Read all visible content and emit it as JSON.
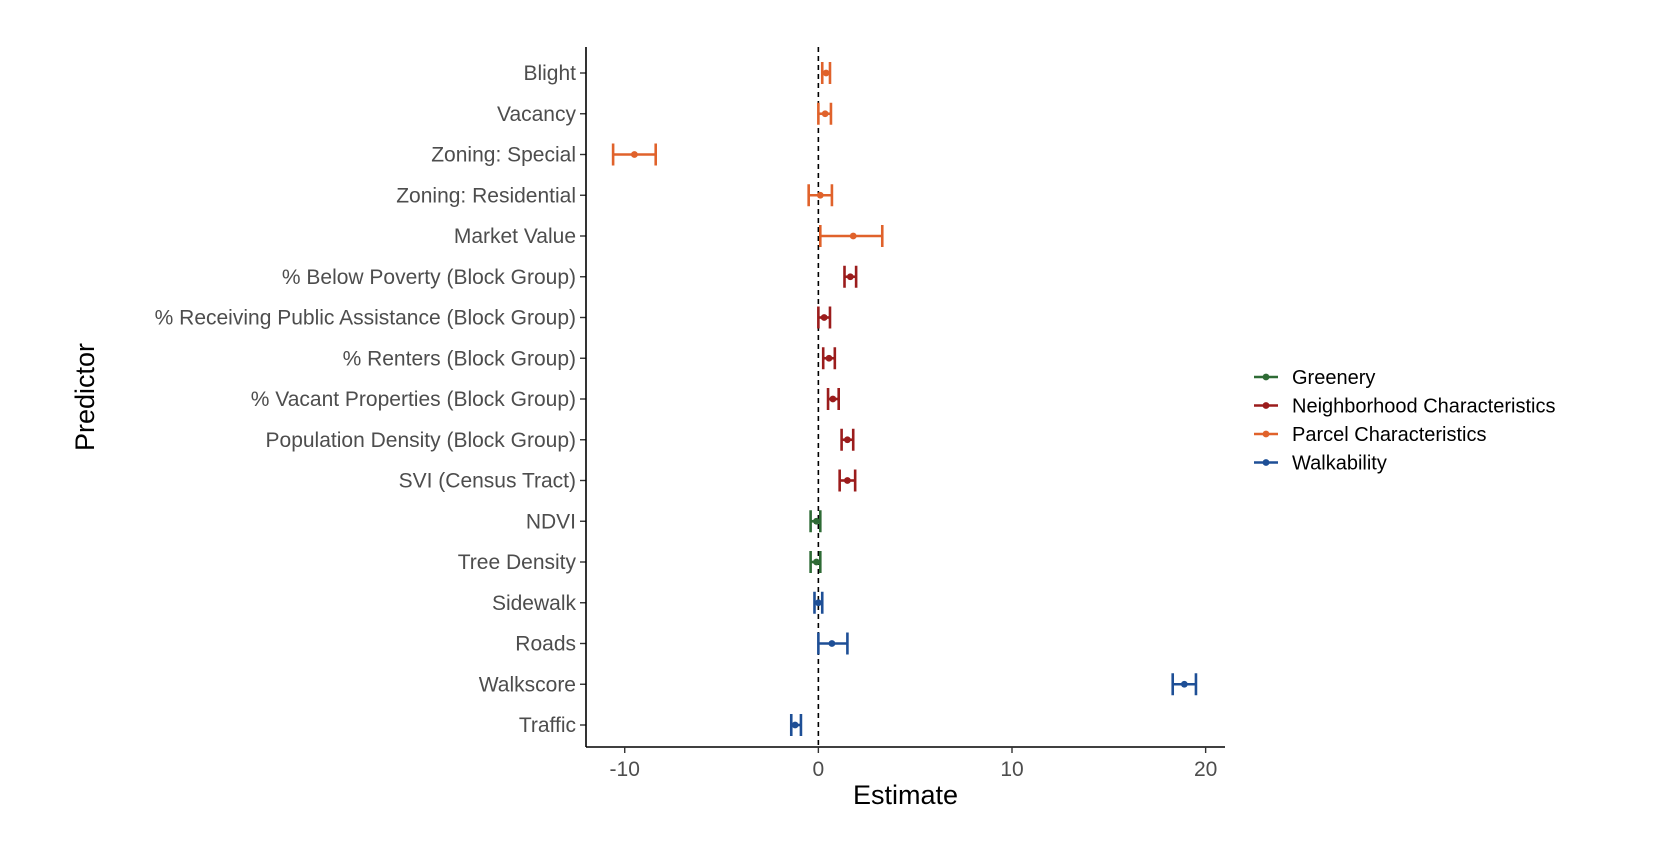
{
  "chart_data": {
    "type": "forest",
    "xlabel": "Estimate",
    "ylabel": "Predictor",
    "xlim": [
      -12,
      21
    ],
    "xticks": [
      -10,
      0,
      10,
      20
    ],
    "xtick_labels": [
      "-10",
      "0",
      "10",
      "20"
    ],
    "reference_line": 0,
    "legend_position": "right",
    "grid": false,
    "groups": [
      {
        "name": "Greenery",
        "color": "#2e6b35"
      },
      {
        "name": "Neighborhood Characteristics",
        "color": "#9b1c1c"
      },
      {
        "name": "Parcel Characteristics",
        "color": "#e0622b"
      },
      {
        "name": "Walkability",
        "color": "#1e4f96"
      }
    ],
    "points": [
      {
        "label": "Blight",
        "group": "Parcel Characteristics",
        "estimate": 0.4,
        "low": 0.2,
        "high": 0.6
      },
      {
        "label": "Vacancy",
        "group": "Parcel Characteristics",
        "estimate": 0.35,
        "low": 0.0,
        "high": 0.65
      },
      {
        "label": "Zoning: Special",
        "group": "Parcel Characteristics",
        "estimate": -9.5,
        "low": -10.6,
        "high": -8.4
      },
      {
        "label": "Zoning: Residential",
        "group": "Parcel Characteristics",
        "estimate": 0.1,
        "low": -0.5,
        "high": 0.7
      },
      {
        "label": "Market Value",
        "group": "Parcel Characteristics",
        "estimate": 1.8,
        "low": 0.1,
        "high": 3.3
      },
      {
        "label": "% Below Poverty (Block Group)",
        "group": "Neighborhood Characteristics",
        "estimate": 1.65,
        "low": 1.35,
        "high": 1.95
      },
      {
        "label": "% Receiving Public Assistance (Block Group)",
        "group": "Neighborhood Characteristics",
        "estimate": 0.3,
        "low": 0.0,
        "high": 0.6
      },
      {
        "label": "% Renters (Block Group)",
        "group": "Neighborhood Characteristics",
        "estimate": 0.55,
        "low": 0.25,
        "high": 0.85
      },
      {
        "label": "% Vacant Properties (Block Group)",
        "group": "Neighborhood Characteristics",
        "estimate": 0.75,
        "low": 0.5,
        "high": 1.05
      },
      {
        "label": "Population Density (Block Group)",
        "group": "Neighborhood Characteristics",
        "estimate": 1.5,
        "low": 1.2,
        "high": 1.8
      },
      {
        "label": "SVI (Census Tract)",
        "group": "Neighborhood Characteristics",
        "estimate": 1.5,
        "low": 1.1,
        "high": 1.9
      },
      {
        "label": "NDVI",
        "group": "Greenery",
        "estimate": -0.1,
        "low": -0.4,
        "high": 0.1
      },
      {
        "label": "Tree Density",
        "group": "Greenery",
        "estimate": -0.1,
        "low": -0.4,
        "high": 0.1
      },
      {
        "label": "Sidewalk",
        "group": "Walkability",
        "estimate": 0.0,
        "low": -0.2,
        "high": 0.2
      },
      {
        "label": "Roads",
        "group": "Walkability",
        "estimate": 0.7,
        "low": 0.0,
        "high": 1.5
      },
      {
        "label": "Walkscore",
        "group": "Walkability",
        "estimate": 18.9,
        "low": 18.3,
        "high": 19.5
      },
      {
        "label": "Traffic",
        "group": "Walkability",
        "estimate": -1.2,
        "low": -1.4,
        "high": -0.9
      }
    ]
  }
}
